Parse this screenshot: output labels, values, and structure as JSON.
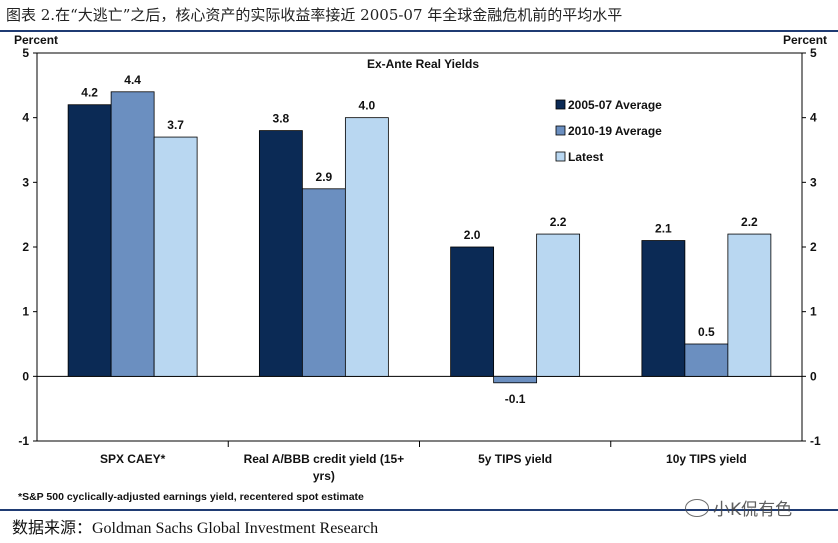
{
  "figure_title": "图表 2.在“大逃亡”之后，核心资产的实际收益率接近 2005-07 年全球金融危机前的平均水平",
  "source_text": "数据来源：Goldman Sachs Global Investment Research",
  "watermark": "小K侃有色",
  "footnote": "*S&P 500 cyclically-adjusted earnings yield, recentered spot estimate",
  "colors": {
    "series_2005_07": "#0b2a55",
    "series_2010_19": "#6b8fc0",
    "series_latest": "#b9d7f1",
    "rule": "#1f3b73"
  },
  "chart_data": {
    "type": "bar",
    "title": "Ex-Ante Real Yields",
    "ylabel_left": "Percent",
    "ylabel_right": "Percent",
    "ylim": [
      -1,
      5
    ],
    "yticks": [
      "-1",
      "0",
      "1",
      "2",
      "3",
      "4",
      "5"
    ],
    "categories": [
      "SPX CAEY*",
      "Real A/BBB credit yield (15+ yrs)",
      "5y TIPS yield",
      "10y TIPS yield"
    ],
    "category_lines": [
      [
        "SPX CAEY*"
      ],
      [
        "Real A/BBB credit yield (15+",
        "yrs)"
      ],
      [
        "5y TIPS yield"
      ],
      [
        "10y TIPS yield"
      ]
    ],
    "series": [
      {
        "name": "2005-07 Average",
        "values": [
          4.2,
          3.8,
          2.0,
          2.1
        ],
        "labels": [
          "4.2",
          "3.8",
          "2.0",
          "2.1"
        ]
      },
      {
        "name": "2010-19 Average",
        "values": [
          4.4,
          2.9,
          -0.1,
          0.5
        ],
        "labels": [
          "4.4",
          "2.9",
          "-0.1",
          "0.5"
        ]
      },
      {
        "name": "Latest",
        "values": [
          3.7,
          4.0,
          2.2,
          2.2
        ],
        "labels": [
          "3.7",
          "4.0",
          "2.2",
          "2.2"
        ]
      }
    ],
    "legend_position": "top-right",
    "grid": false
  }
}
